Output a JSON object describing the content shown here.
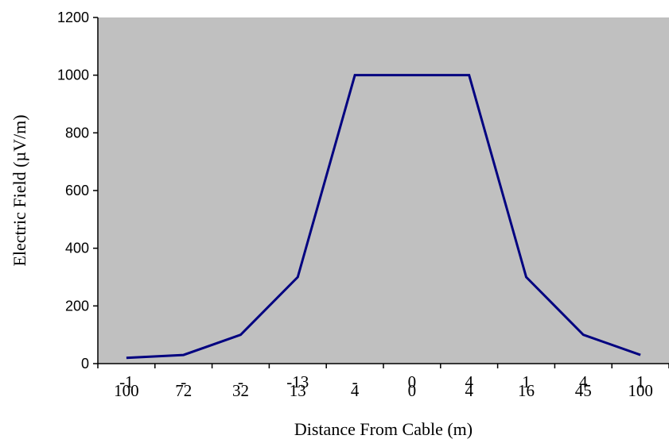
{
  "chart_data": {
    "type": "line",
    "title": "",
    "xlabel": "Distance From Cable (m)",
    "ylabel": "Electric Field (µV/m)",
    "ylim": [
      0,
      1200
    ],
    "yticks": [
      0,
      200,
      400,
      600,
      800,
      1000,
      1200
    ],
    "grid": false,
    "legend": "none",
    "x_tick_labels": [
      {
        "lines": [
          "-1",
          "100"
        ]
      },
      {
        "lines": [
          "-",
          "72"
        ]
      },
      {
        "lines": [
          "-",
          "32"
        ]
      },
      {
        "lines": [
          "-13",
          "13"
        ]
      },
      {
        "lines": [
          "-",
          "4"
        ]
      },
      {
        "lines": [
          "0",
          "0"
        ]
      },
      {
        "lines": [
          "4",
          "4"
        ]
      },
      {
        "lines": [
          "1",
          "16"
        ]
      },
      {
        "lines": [
          "4",
          "45"
        ]
      },
      {
        "lines": [
          "1",
          "100"
        ]
      }
    ],
    "x": [
      -100,
      -72,
      -32,
      -13,
      -4,
      0,
      4,
      16,
      45,
      100
    ],
    "series": [
      {
        "values": [
          20,
          30,
          100,
          300,
          1000,
          1000,
          1000,
          300,
          100,
          30
        ]
      }
    ]
  },
  "colors": {
    "plot_background": "#c0c0c0",
    "series_line": "#000080",
    "axis": "#000000"
  }
}
